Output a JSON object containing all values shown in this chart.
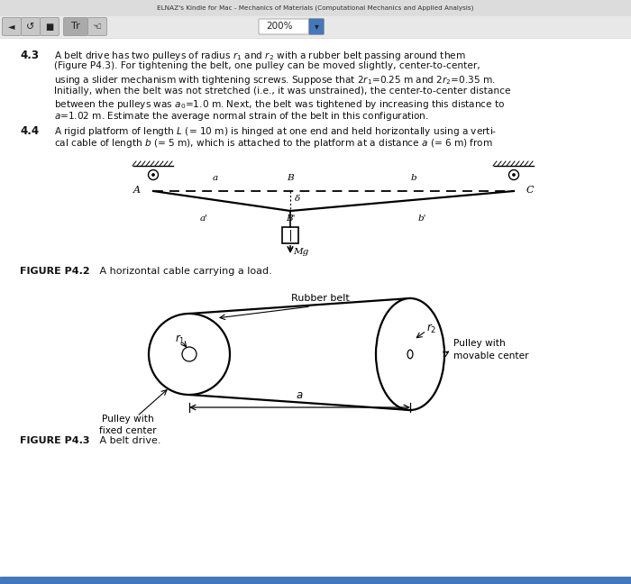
{
  "bg_color": "#f2f2f2",
  "page_bg": "#ffffff",
  "header_bg": "#e0e0e0",
  "header_text": "ELNAZ's Kindle for Mac - Mechanics of Materials (Computational Mechanics and Applied Analysis)",
  "zoom_text": "200%",
  "text_color": "#1a1a1a",
  "fig42_caption_bold": "FIGURE P4.2",
  "fig42_caption_normal": "   A horizontal cable carrying a load.",
  "fig43_caption_bold": "FIGURE P4.3",
  "fig43_caption_normal": "   A belt drive.",
  "label_rubber_belt": "Rubber belt",
  "label_pulley_fixed": "Pulley with\nfixed center",
  "label_pulley_movable": "Pulley with\nmovable center"
}
